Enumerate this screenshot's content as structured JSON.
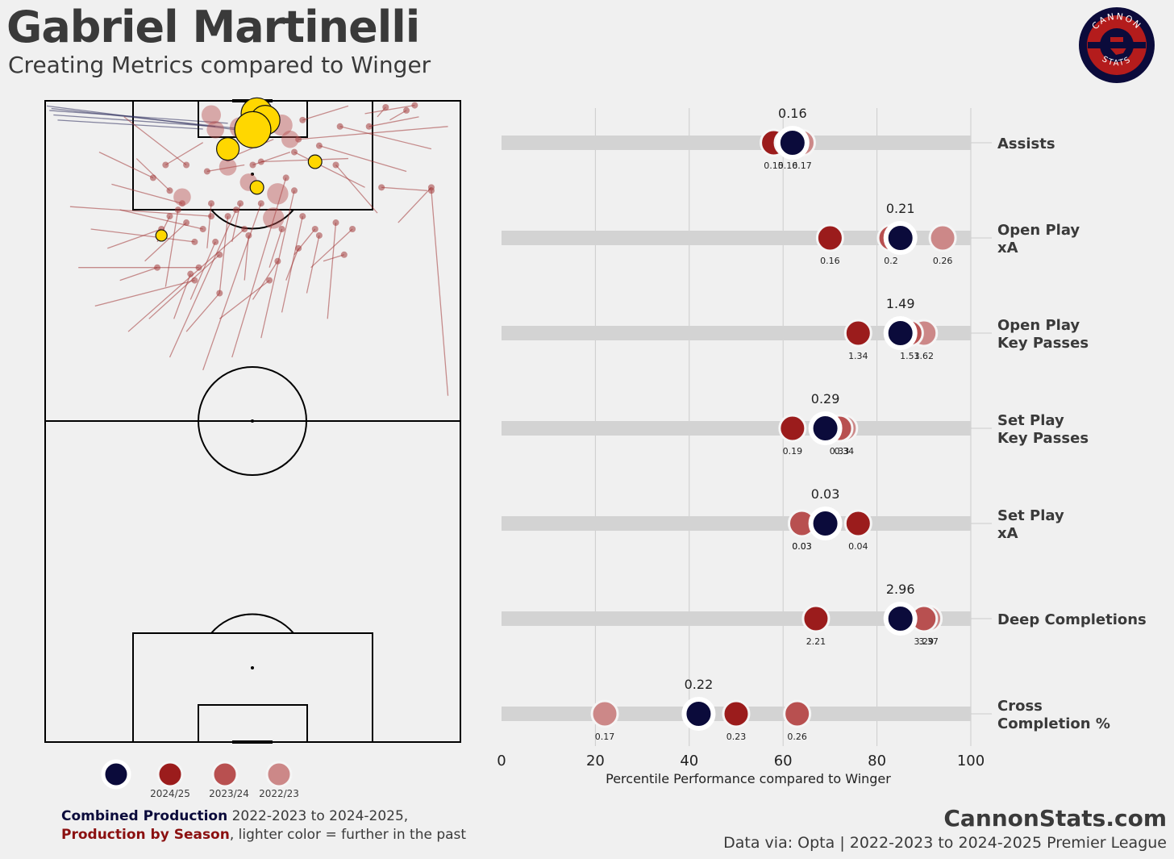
{
  "header": {
    "title": "Gabriel Martinelli",
    "subtitle": "Creating Metrics compared to Winger"
  },
  "logo": {
    "top_text": "CANNON",
    "bottom_text": "STATS"
  },
  "legend": {
    "items": [
      {
        "label": "",
        "color": "#0b0b3b"
      },
      {
        "label": "2024/25",
        "color": "#9b1c1c"
      },
      {
        "label": "2023/24",
        "color": "#b85050"
      },
      {
        "label": "2022/23",
        "color": "#cc8888"
      }
    ]
  },
  "caption": {
    "line1_bold": "Combined Production",
    "line1_rest": " 2022-2023 to 2024-2025,",
    "line2_bold": "Production by Season",
    "line2_rest": ", lighter color = further in the past"
  },
  "footer": {
    "site": "CannonStats.com",
    "source": "Data via: Opta | 2022-2023 to 2024-2025 Premier League"
  },
  "colors": {
    "combined": "#0b0b3b",
    "s2425": "#9b1c1c",
    "s2324": "#b85050",
    "s2223": "#cc8888",
    "assist_marker": "#ffd700",
    "pass_line": "#a33a3a",
    "bar": "#d3d3d3"
  },
  "chart_data": [
    {
      "type": "dot",
      "xlabel": "Percentile Performance compared to Winger",
      "xlim": [
        0,
        100
      ],
      "xticks": [
        0,
        20,
        40,
        60,
        80,
        100
      ],
      "grid": true,
      "metrics": [
        {
          "label": [
            "Assists"
          ],
          "combined": {
            "pct": 62,
            "value": "0.16"
          },
          "seasons": [
            {
              "season": "2022/23",
              "pct": 64,
              "value": "0.17"
            },
            {
              "season": "2024/25",
              "pct": 58,
              "value": "0.15"
            },
            {
              "season": "2023/24",
              "pct": 61,
              "value": "0.16"
            }
          ]
        },
        {
          "label": [
            "Open Play",
            "xA"
          ],
          "combined": {
            "pct": 85,
            "value": "0.21"
          },
          "seasons": [
            {
              "season": "2022/23",
              "pct": 94,
              "value": "0.26"
            },
            {
              "season": "2024/25",
              "pct": 70,
              "value": "0.16"
            },
            {
              "season": "2023/24",
              "pct": 83,
              "value": "0.2"
            }
          ]
        },
        {
          "label": [
            "Open Play",
            "Key Passes"
          ],
          "combined": {
            "pct": 85,
            "value": "1.49"
          },
          "seasons": [
            {
              "season": "2022/23",
              "pct": 90,
              "value": "1.62"
            },
            {
              "season": "2024/25",
              "pct": 76,
              "value": "1.34"
            },
            {
              "season": "2023/24",
              "pct": 87,
              "value": "1.53"
            }
          ]
        },
        {
          "label": [
            "Set Play",
            "Key Passes"
          ],
          "combined": {
            "pct": 69,
            "value": "0.29"
          },
          "seasons": [
            {
              "season": "2022/23",
              "pct": 73,
              "value": "0.34"
            },
            {
              "season": "2024/25",
              "pct": 62,
              "value": "0.19"
            },
            {
              "season": "2023/24",
              "pct": 72,
              "value": "0.33"
            }
          ]
        },
        {
          "label": [
            "Set Play",
            "xA"
          ],
          "combined": {
            "pct": 69,
            "value": "0.03"
          },
          "seasons": [
            {
              "season": "2022/23",
              "pct": 64,
              "value": "0.03"
            },
            {
              "season": "2024/25",
              "pct": 76,
              "value": "0.04"
            },
            {
              "season": "2023/24",
              "pct": 64,
              "value": "0.03"
            }
          ]
        },
        {
          "label": [
            "Deep Completions"
          ],
          "combined": {
            "pct": 85,
            "value": "2.96"
          },
          "seasons": [
            {
              "season": "2022/23",
              "pct": 91,
              "value": "3.37"
            },
            {
              "season": "2024/25",
              "pct": 67,
              "value": "2.21"
            },
            {
              "season": "2023/24",
              "pct": 90,
              "value": "3.29"
            }
          ]
        },
        {
          "label": [
            "Cross",
            "Completion %"
          ],
          "combined": {
            "pct": 42,
            "value": "0.22"
          },
          "seasons": [
            {
              "season": "2022/23",
              "pct": 22,
              "value": "0.17"
            },
            {
              "season": "2023/24",
              "pct": 63,
              "value": "0.26"
            },
            {
              "season": "2024/25",
              "pct": 50,
              "value": "0.23"
            }
          ]
        }
      ]
    },
    {
      "type": "scatter",
      "description_units": "pitch coordinates 0-100 (x across width, y along length from attacking goal)",
      "xlim": [
        0,
        100
      ],
      "ylim": [
        0,
        100
      ],
      "passes": [
        [
          0.4,
          0.8,
          52,
          5,
          1
        ],
        [
          1,
          1.5,
          44,
          3.5,
          1
        ],
        [
          2,
          2.2,
          41,
          4,
          1
        ],
        [
          1.5,
          1.2,
          49,
          4.5,
          1
        ],
        [
          3,
          3,
          38,
          4.4,
          1
        ],
        [
          77,
          2,
          89,
          0.7,
          0
        ],
        [
          80,
          2.5,
          82,
          1,
          0
        ],
        [
          73,
          0.8,
          62,
          3,
          0
        ],
        [
          83,
          3,
          87,
          1.5,
          0
        ],
        [
          90,
          2.5,
          78,
          4,
          0
        ],
        [
          93,
          7.5,
          71,
          4,
          0
        ],
        [
          97,
          4,
          61,
          6,
          0
        ],
        [
          87,
          11,
          66,
          7,
          0
        ],
        [
          77,
          13.5,
          60,
          8,
          0
        ],
        [
          92,
          14,
          81,
          13.5,
          0
        ],
        [
          80,
          17.5,
          70,
          10,
          0
        ],
        [
          73,
          9,
          52,
          9.5,
          0
        ],
        [
          59,
          8,
          50,
          10,
          0
        ],
        [
          55,
          6,
          44,
          9,
          0
        ],
        [
          48,
          10,
          39,
          11,
          0
        ],
        [
          38,
          6.5,
          29,
          10,
          0
        ],
        [
          19,
          2.5,
          34,
          10,
          0
        ],
        [
          13,
          8,
          26,
          12,
          0
        ],
        [
          22,
          9,
          30,
          14,
          0
        ],
        [
          16,
          13,
          33,
          16,
          0
        ],
        [
          6,
          16.5,
          40,
          18,
          0
        ],
        [
          18,
          17,
          38,
          20,
          0
        ],
        [
          11,
          20,
          36,
          22,
          0
        ],
        [
          8,
          26,
          37,
          26,
          0
        ],
        [
          12,
          32,
          36,
          28,
          0
        ],
        [
          25,
          34,
          42,
          24,
          0
        ],
        [
          20,
          36,
          48,
          20,
          0
        ],
        [
          30,
          40,
          46,
          17,
          0
        ],
        [
          38,
          42,
          52,
          16,
          0
        ],
        [
          45,
          40,
          58,
          12,
          0
        ],
        [
          52,
          37,
          60,
          14,
          0
        ],
        [
          57,
          33,
          62,
          18,
          0
        ],
        [
          63,
          30,
          66,
          21,
          0
        ],
        [
          68,
          34,
          70,
          19,
          0
        ],
        [
          35,
          31,
          41,
          22,
          0
        ],
        [
          29,
          29,
          32,
          17,
          0
        ],
        [
          24,
          25,
          34,
          19,
          0
        ],
        [
          42,
          30,
          44,
          18,
          0
        ],
        [
          48,
          28,
          49,
          21,
          0
        ],
        [
          54,
          26,
          57,
          20,
          0
        ],
        [
          60,
          24,
          65,
          20,
          0
        ],
        [
          27,
          22,
          30,
          18,
          0
        ],
        [
          15,
          23,
          28,
          20,
          0
        ],
        [
          39,
          23,
          40,
          16,
          0
        ],
        [
          45,
          22,
          47,
          16,
          0
        ],
        [
          85,
          19,
          93,
          13.5,
          0
        ],
        [
          97,
          46,
          93,
          14,
          0
        ],
        [
          31,
          34,
          35,
          27,
          0
        ],
        [
          18,
          28,
          27,
          26,
          0
        ],
        [
          34,
          36,
          42,
          30,
          0
        ],
        [
          42,
          34,
          54,
          28,
          0
        ],
        [
          64,
          26,
          74,
          20,
          0
        ],
        [
          67,
          25,
          72,
          24,
          0
        ],
        [
          50,
          31,
          56,
          25,
          0
        ],
        [
          58,
          28,
          61,
          23,
          0
        ]
      ],
      "assists": [
        [
          51,
          2,
          1.4
        ],
        [
          53,
          3,
          1.3
        ],
        [
          50,
          4.5,
          1.6
        ],
        [
          44,
          7.5,
          1
        ],
        [
          65,
          9.5,
          0.6
        ],
        [
          51,
          13.5,
          0.6
        ],
        [
          28,
          21,
          0.5
        ]
      ],
      "bubbles": [
        [
          40,
          2.2,
          1
        ],
        [
          41,
          4.5,
          0.9
        ],
        [
          47,
          4.2,
          1.1
        ],
        [
          57,
          3.8,
          1.1
        ],
        [
          59,
          6,
          0.9
        ],
        [
          44,
          10.3,
          0.9
        ],
        [
          49,
          12.7,
          0.9
        ],
        [
          56,
          14.5,
          1.1
        ],
        [
          33,
          15,
          0.9
        ],
        [
          55,
          18.3,
          1.1
        ]
      ]
    }
  ]
}
